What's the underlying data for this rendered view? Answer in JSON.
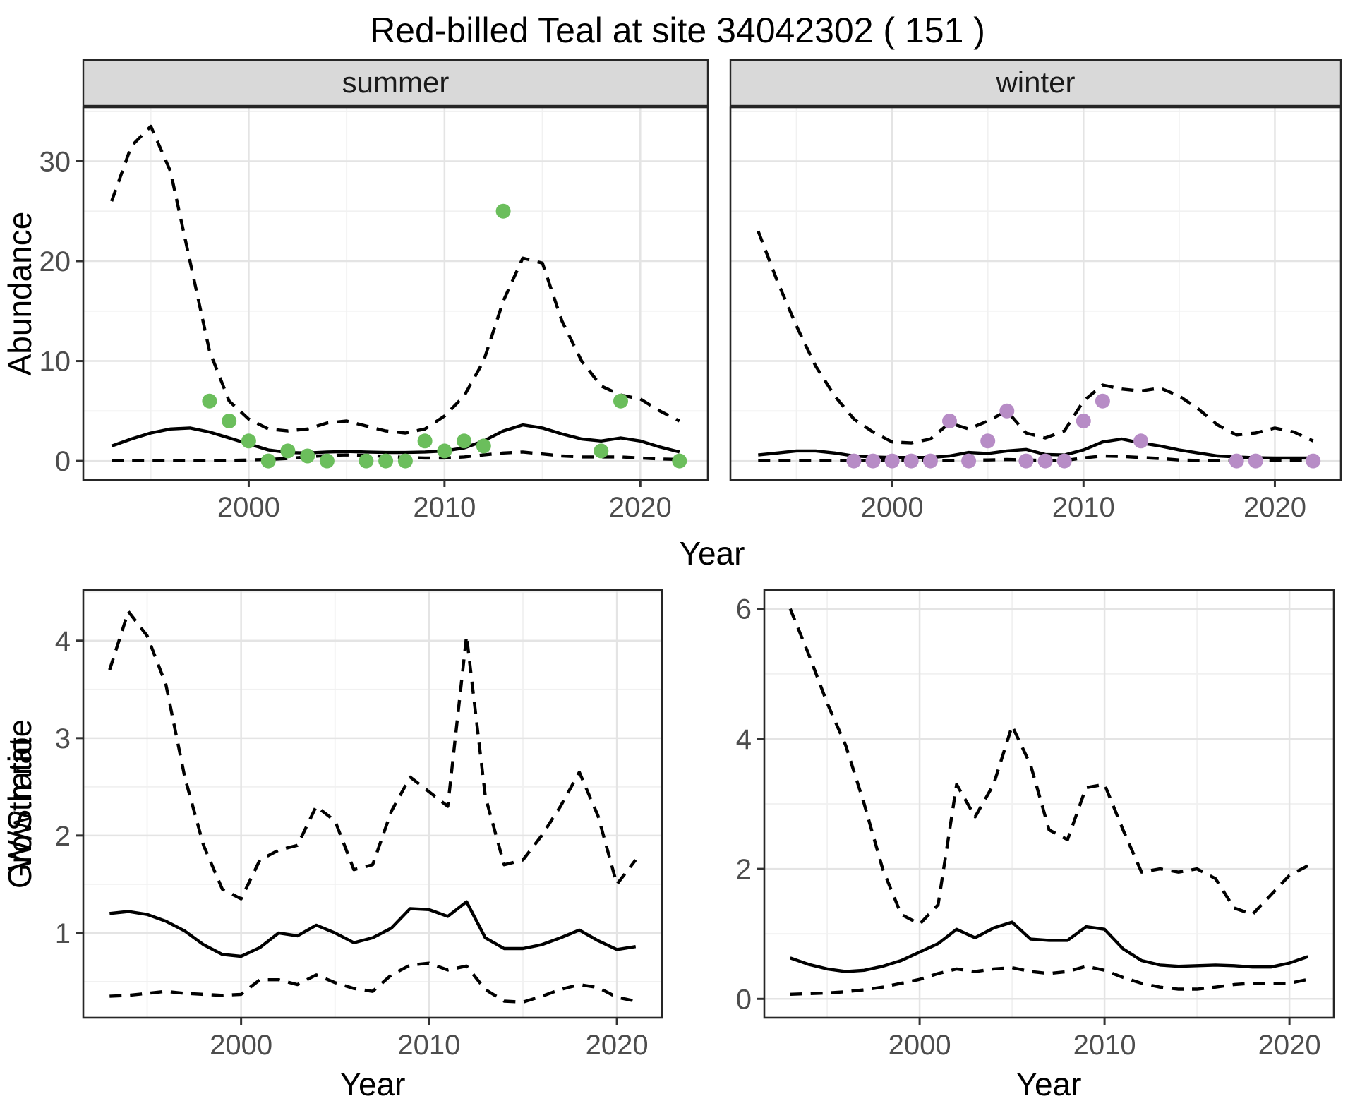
{
  "title": "Red-billed Teal at site 34042302 ( 151 )",
  "colors": {
    "summer_point": "#6BBE5C",
    "winter_point": "#B78CC6",
    "line": "#000000",
    "strip_fill": "#D9D9D9",
    "panel_border": "#262626",
    "grid_major": "#E4E4E4",
    "grid_minor": "#F1F1F1",
    "axis_text": "#4D4D4D",
    "axis_title": "#000000"
  },
  "chart_data": [
    {
      "id": "abundance-summer",
      "type": "line+scatter",
      "facet_label": "summer",
      "ylabel": "Abundance",
      "xlabel": "Year",
      "x_ticks": [
        "2000",
        "2010",
        "2020"
      ],
      "y_ticks": [
        "0",
        "10",
        "20",
        "30"
      ],
      "xlim": [
        1991.55,
        2023.45
      ],
      "ylim": [
        -1.9,
        35.4
      ],
      "years": [
        1993,
        1994,
        1995,
        1996,
        1997,
        1998,
        1999,
        2000,
        2001,
        2002,
        2003,
        2004,
        2005,
        2006,
        2007,
        2008,
        2009,
        2010,
        2011,
        2012,
        2013,
        2014,
        2015,
        2016,
        2017,
        2018,
        2019,
        2020,
        2021,
        2022
      ],
      "series": [
        {
          "name": "median",
          "style": "solid",
          "values": [
            1.5,
            2.2,
            2.8,
            3.2,
            3.3,
            2.9,
            2.3,
            1.7,
            1.1,
            0.85,
            0.8,
            0.9,
            0.95,
            0.9,
            0.85,
            0.85,
            0.9,
            1.0,
            1.3,
            2.0,
            3.0,
            3.6,
            3.3,
            2.7,
            2.2,
            2.0,
            2.3,
            2.0,
            1.4,
            0.9
          ]
        },
        {
          "name": "upper_ci",
          "style": "dashed",
          "values": [
            26,
            31.5,
            33.5,
            29,
            20,
            11,
            6,
            4.2,
            3.2,
            3.0,
            3.2,
            3.8,
            4.0,
            3.5,
            3.0,
            2.8,
            3.2,
            4.5,
            6.5,
            10,
            16,
            20.3,
            19.8,
            14,
            10,
            7.5,
            6.6,
            6.2,
            5.0,
            4.0
          ]
        },
        {
          "name": "lower_ci",
          "style": "dashed",
          "values": [
            0.02,
            0.02,
            0.02,
            0.02,
            0.02,
            0.02,
            0.05,
            0.1,
            0.15,
            0.25,
            0.4,
            0.55,
            0.6,
            0.55,
            0.45,
            0.35,
            0.3,
            0.3,
            0.4,
            0.6,
            0.8,
            0.9,
            0.7,
            0.5,
            0.4,
            0.4,
            0.4,
            0.3,
            0.2,
            0.15
          ]
        }
      ],
      "points": {
        "color_key": "summer_point",
        "x": [
          1998,
          1999,
          2000,
          2001,
          2002,
          2003,
          2004,
          2006,
          2007,
          2008,
          2009,
          2010,
          2011,
          2012,
          2013,
          2018,
          2019,
          2022
        ],
        "y": [
          6,
          4,
          2,
          0,
          1,
          0.5,
          0,
          0,
          0,
          0,
          2,
          1,
          2,
          1.5,
          25,
          1,
          6,
          0
        ]
      }
    },
    {
      "id": "abundance-winter",
      "type": "line+scatter",
      "facet_label": "winter",
      "ylabel": "",
      "xlabel": "Year",
      "x_ticks": [
        "2000",
        "2010",
        "2020"
      ],
      "y_ticks": [],
      "xlim": [
        1991.55,
        2023.45
      ],
      "ylim": [
        -1.9,
        35.4
      ],
      "years": [
        1993,
        1994,
        1995,
        1996,
        1997,
        1998,
        1999,
        2000,
        2001,
        2002,
        2003,
        2004,
        2005,
        2006,
        2007,
        2008,
        2009,
        2010,
        2011,
        2012,
        2013,
        2014,
        2015,
        2016,
        2017,
        2018,
        2019,
        2020,
        2021,
        2022
      ],
      "series": [
        {
          "name": "median",
          "style": "solid",
          "values": [
            0.6,
            0.8,
            1.0,
            1.0,
            0.8,
            0.5,
            0.4,
            0.35,
            0.35,
            0.35,
            0.5,
            0.85,
            0.75,
            1.0,
            1.15,
            0.65,
            0.6,
            1.1,
            1.9,
            2.2,
            1.8,
            1.5,
            1.1,
            0.8,
            0.5,
            0.4,
            0.32,
            0.3,
            0.3,
            0.3
          ]
        },
        {
          "name": "upper_ci",
          "style": "dashed",
          "values": [
            23,
            18,
            13.5,
            9.5,
            6.5,
            4.2,
            2.9,
            1.9,
            1.8,
            2.2,
            3.8,
            3.2,
            4.0,
            5.0,
            2.8,
            2.3,
            3.0,
            6.0,
            7.6,
            7.2,
            7.0,
            7.3,
            6.5,
            5.2,
            3.6,
            2.6,
            2.8,
            3.3,
            2.9,
            2.0
          ]
        },
        {
          "name": "lower_ci",
          "style": "dashed",
          "values": [
            0.02,
            0.02,
            0.02,
            0.02,
            0.02,
            0.02,
            0.02,
            0.02,
            0.02,
            0.02,
            0.05,
            0.1,
            0.1,
            0.15,
            0.1,
            0.05,
            0.05,
            0.3,
            0.5,
            0.45,
            0.35,
            0.25,
            0.1,
            0.05,
            0.02,
            0.02,
            0.02,
            0.02,
            0.02,
            0.02
          ]
        }
      ],
      "points": {
        "color_key": "winter_point",
        "x": [
          1998,
          1999,
          2000,
          2001,
          2002,
          2003,
          2004,
          2005,
          2006,
          2007,
          2008,
          2009,
          2010,
          2011,
          2013,
          2018,
          2019,
          2022
        ],
        "y": [
          0,
          0,
          0,
          0,
          0,
          4,
          0,
          2,
          5,
          0,
          0,
          0,
          4,
          6,
          2,
          0,
          0,
          0
        ]
      }
    },
    {
      "id": "growth-rate",
      "type": "line",
      "facet_label": "",
      "ylabel": "Growth rate",
      "xlabel": "Year",
      "x_ticks": [
        "2000",
        "2010",
        "2020"
      ],
      "y_ticks": [
        "1",
        "2",
        "3",
        "4"
      ],
      "xlim": [
        1991.6,
        2022.4
      ],
      "ylim": [
        0.13,
        4.52
      ],
      "years": [
        1993,
        1994,
        1995,
        1996,
        1997,
        1998,
        1999,
        2000,
        2001,
        2002,
        2003,
        2004,
        2005,
        2006,
        2007,
        2008,
        2009,
        2010,
        2011,
        2012,
        2013,
        2014,
        2015,
        2016,
        2017,
        2018,
        2019,
        2020,
        2021
      ],
      "series": [
        {
          "name": "median",
          "style": "solid",
          "values": [
            1.2,
            1.22,
            1.19,
            1.12,
            1.02,
            0.88,
            0.78,
            0.76,
            0.85,
            1.0,
            0.97,
            1.08,
            1.0,
            0.9,
            0.95,
            1.05,
            1.25,
            1.24,
            1.17,
            1.32,
            0.95,
            0.84,
            0.84,
            0.88,
            0.95,
            1.03,
            0.92,
            0.83,
            0.86
          ]
        },
        {
          "name": "upper_ci",
          "style": "dashed",
          "values": [
            3.7,
            4.3,
            4.05,
            3.55,
            2.6,
            1.9,
            1.45,
            1.35,
            1.75,
            1.85,
            1.9,
            2.3,
            2.15,
            1.65,
            1.7,
            2.25,
            2.6,
            2.45,
            2.3,
            4.05,
            2.4,
            1.7,
            1.75,
            2.0,
            2.3,
            2.65,
            2.2,
            1.5,
            1.75
          ]
        },
        {
          "name": "lower_ci",
          "style": "dashed",
          "values": [
            0.35,
            0.36,
            0.38,
            0.4,
            0.38,
            0.37,
            0.36,
            0.37,
            0.52,
            0.52,
            0.47,
            0.57,
            0.49,
            0.43,
            0.4,
            0.57,
            0.67,
            0.69,
            0.62,
            0.66,
            0.42,
            0.3,
            0.29,
            0.35,
            0.42,
            0.47,
            0.44,
            0.34,
            0.3
          ]
        }
      ],
      "points": null
    },
    {
      "id": "ws-ratio",
      "type": "line",
      "facet_label": "",
      "ylabel": "W/S ratio",
      "xlabel": "Year",
      "x_ticks": [
        "2000",
        "2010",
        "2020"
      ],
      "y_ticks": [
        "0",
        "2",
        "4",
        "6"
      ],
      "xlim": [
        1991.6,
        2022.4
      ],
      "ylim": [
        -0.29,
        6.29
      ],
      "years": [
        1993,
        1994,
        1995,
        1996,
        1997,
        1998,
        1999,
        2000,
        2001,
        2002,
        2003,
        2004,
        2005,
        2006,
        2007,
        2008,
        2009,
        2010,
        2011,
        2012,
        2013,
        2014,
        2015,
        2016,
        2017,
        2018,
        2019,
        2020,
        2021
      ],
      "series": [
        {
          "name": "median",
          "style": "solid",
          "values": [
            0.63,
            0.53,
            0.46,
            0.42,
            0.44,
            0.5,
            0.59,
            0.72,
            0.85,
            1.07,
            0.94,
            1.09,
            1.18,
            0.92,
            0.9,
            0.9,
            1.11,
            1.07,
            0.77,
            0.59,
            0.52,
            0.5,
            0.51,
            0.52,
            0.51,
            0.49,
            0.49,
            0.55,
            0.65
          ]
        },
        {
          "name": "upper_ci",
          "style": "dashed",
          "values": [
            6.0,
            5.3,
            4.55,
            3.9,
            3.0,
            2.0,
            1.3,
            1.15,
            1.45,
            3.3,
            2.8,
            3.3,
            4.2,
            3.6,
            2.6,
            2.45,
            3.25,
            3.3,
            2.6,
            1.95,
            2.0,
            1.95,
            2.0,
            1.85,
            1.4,
            1.3,
            1.6,
            1.9,
            2.05
          ]
        },
        {
          "name": "lower_ci",
          "style": "dashed",
          "values": [
            0.07,
            0.08,
            0.09,
            0.11,
            0.14,
            0.18,
            0.24,
            0.3,
            0.39,
            0.46,
            0.42,
            0.46,
            0.48,
            0.42,
            0.39,
            0.42,
            0.5,
            0.44,
            0.33,
            0.24,
            0.18,
            0.15,
            0.15,
            0.18,
            0.22,
            0.24,
            0.24,
            0.24,
            0.3
          ]
        }
      ],
      "points": null
    }
  ]
}
